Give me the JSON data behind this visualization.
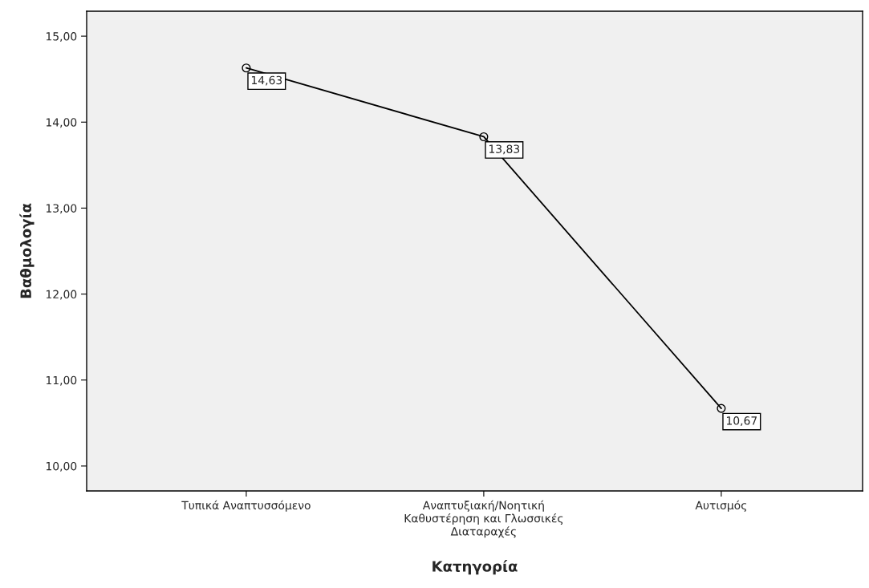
{
  "chart_data": {
    "type": "line",
    "xlabel": "Κατηγορία",
    "ylabel": "Βαθμολογία",
    "categories": [
      "Τυπικά Αναπτυσσόμενο",
      "Αναπτυξιακή/Νοητική\nΚαθυστέρηση και Γλωσσικές\nΔιαταραχές",
      "Αυτισμός"
    ],
    "series": [
      {
        "color": "#000000",
        "values": [
          14.63,
          13.83,
          10.67
        ],
        "value_labels": [
          "14,63",
          "13,83",
          "10,67"
        ]
      }
    ],
    "ylim": [
      9.71,
      15.29
    ],
    "yticks": [
      {
        "value": 10,
        "label": "10,00"
      },
      {
        "value": 11,
        "label": "11,00"
      },
      {
        "value": 12,
        "label": "12,00"
      },
      {
        "value": 13,
        "label": "13,00"
      },
      {
        "value": 14,
        "label": "14,00"
      },
      {
        "value": 15,
        "label": "15,00"
      }
    ],
    "marker": "circle",
    "line_style": "solid",
    "grid": false,
    "legend": false
  }
}
